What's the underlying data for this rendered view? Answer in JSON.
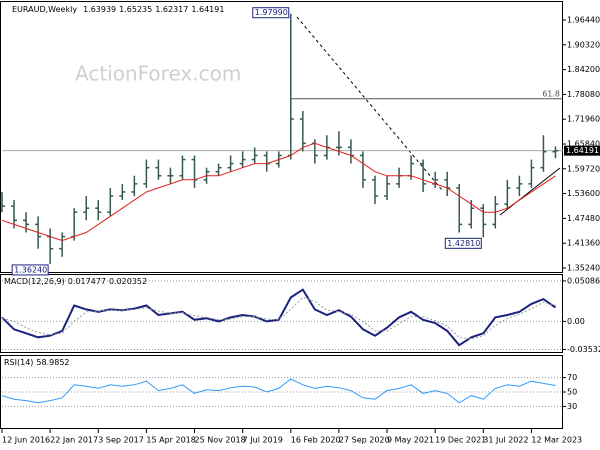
{
  "chart_data": {
    "type": "ohlc",
    "title": "EURAUD,Weekly",
    "watermark": "ActionForex.com",
    "x": [
      "12 Jun 2016",
      "7 Aug 2016",
      "2 Oct 2016",
      "27 Nov 2016",
      "22 Jan 2017",
      "19 Mar 2017",
      "14 May 2017",
      "9 Jul 2017",
      "3 Sep 2017",
      "29 Oct 2017",
      "24 Dec 2017",
      "18 Feb 2018",
      "15 Apr 2018",
      "10 Jun 2018",
      "5 Aug 2018",
      "30 Sep 2018",
      "25 Nov 2018",
      "20 Jan 2019",
      "17 Mar 2019",
      "12 May 2019",
      "7 Jul 2019",
      "1 Sep 2019",
      "27 Oct 2019",
      "22 Dec 2019",
      "16 Feb 2020",
      "12 Apr 2020",
      "7 Jun 2020",
      "2 Aug 2020",
      "27 Sep 2020",
      "22 Nov 2020",
      "17 Jan 2021",
      "14 Mar 2021",
      "9 May 2021",
      "4 Jul 2021",
      "29 Aug 2021",
      "24 Oct 2021",
      "19 Dec 2021",
      "13 Feb 2022",
      "10 Apr 2022",
      "5 Jun 2022",
      "31 Jul 2022",
      "25 Sep 2022",
      "20 Nov 2022",
      "15 Jan 2023",
      "12 Mar 2023",
      "7 May 2023",
      "2 Jul 2023"
    ],
    "xlim": [
      "12 Jun 2016",
      "6 Aug 2023"
    ],
    "xticks": [
      "12 Jun 2016",
      "22 Jan 2017",
      "3 Sep 2017",
      "15 Apr 2018",
      "25 Nov 2018",
      "7 Jul 2019",
      "16 Feb 2020",
      "27 Sep 2020",
      "9 May 2021",
      "19 Dec 2021",
      "31 Jul 2022",
      "12 Mar 2023"
    ],
    "color": "#35594f",
    "open": [
      1.52,
      1.505,
      1.47,
      1.46,
      1.43,
      1.4,
      1.43,
      1.49,
      1.5,
      1.49,
      1.53,
      1.54,
      1.56,
      1.6,
      1.58,
      1.58,
      1.62,
      1.57,
      1.59,
      1.6,
      1.61,
      1.62,
      1.63,
      1.61,
      1.63,
      1.72,
      1.66,
      1.63,
      1.65,
      1.65,
      1.63,
      1.57,
      1.53,
      1.56,
      1.58,
      1.61,
      1.56,
      1.57,
      1.55,
      1.46,
      1.5,
      1.46,
      1.51,
      1.55,
      1.56,
      1.6,
      1.63939
    ],
    "high": [
      1.54,
      1.52,
      1.49,
      1.48,
      1.45,
      1.44,
      1.5,
      1.53,
      1.52,
      1.55,
      1.56,
      1.58,
      1.62,
      1.62,
      1.6,
      1.63,
      1.63,
      1.6,
      1.61,
      1.63,
      1.64,
      1.65,
      1.64,
      1.64,
      1.9799,
      1.74,
      1.67,
      1.68,
      1.69,
      1.67,
      1.64,
      1.58,
      1.58,
      1.6,
      1.63,
      1.62,
      1.59,
      1.59,
      1.56,
      1.52,
      1.51,
      1.53,
      1.57,
      1.58,
      1.62,
      1.68,
      1.65235
    ],
    "low": [
      1.49,
      1.45,
      1.44,
      1.4,
      1.3624,
      1.38,
      1.42,
      1.47,
      1.47,
      1.48,
      1.52,
      1.53,
      1.55,
      1.57,
      1.56,
      1.57,
      1.55,
      1.56,
      1.58,
      1.59,
      1.6,
      1.61,
      1.59,
      1.6,
      1.62,
      1.64,
      1.61,
      1.62,
      1.63,
      1.61,
      1.55,
      1.51,
      1.52,
      1.55,
      1.57,
      1.54,
      1.55,
      1.53,
      1.44,
      1.45,
      1.4281,
      1.45,
      1.5,
      1.53,
      1.55,
      1.59,
      1.62317
    ],
    "close": [
      1.505,
      1.47,
      1.46,
      1.43,
      1.4,
      1.43,
      1.49,
      1.5,
      1.49,
      1.53,
      1.54,
      1.56,
      1.6,
      1.58,
      1.58,
      1.62,
      1.57,
      1.59,
      1.6,
      1.61,
      1.62,
      1.63,
      1.61,
      1.63,
      1.72,
      1.66,
      1.63,
      1.65,
      1.65,
      1.63,
      1.57,
      1.53,
      1.56,
      1.58,
      1.61,
      1.56,
      1.57,
      1.55,
      1.46,
      1.5,
      1.46,
      1.51,
      1.55,
      1.56,
      1.6,
      1.63939,
      1.64191
    ],
    "moving_average": {
      "color": "#e0201b",
      "values": [
        1.47,
        1.46,
        1.45,
        1.44,
        1.43,
        1.42,
        1.43,
        1.44,
        1.46,
        1.48,
        1.5,
        1.52,
        1.54,
        1.55,
        1.56,
        1.57,
        1.57,
        1.58,
        1.58,
        1.59,
        1.6,
        1.61,
        1.61,
        1.62,
        1.63,
        1.65,
        1.66,
        1.65,
        1.64,
        1.63,
        1.61,
        1.59,
        1.58,
        1.58,
        1.58,
        1.57,
        1.56,
        1.55,
        1.53,
        1.51,
        1.49,
        1.49,
        1.5,
        1.52,
        1.54,
        1.56,
        1.58
      ]
    },
    "ylim": [
      1.3425,
      2.0088
    ],
    "yticks": [
      {
        "value": 1.9644,
        "label": "1.96440"
      },
      {
        "value": 1.9032,
        "label": "1.90320"
      },
      {
        "value": 1.842,
        "label": "1.84200"
      },
      {
        "value": 1.7808,
        "label": "1.78080"
      },
      {
        "value": 1.7196,
        "label": "1.71960"
      },
      {
        "value": 1.6584,
        "label": "1.65840"
      },
      {
        "value": 1.5972,
        "label": "1.59720"
      },
      {
        "value": 1.536,
        "label": "1.53600"
      },
      {
        "value": 1.4748,
        "label": "1.47480"
      },
      {
        "value": 1.4136,
        "label": "1.41360"
      },
      {
        "value": 1.3524,
        "label": "1.35240"
      }
    ],
    "annotations": [
      {
        "value": 1.9799,
        "label": "1.97990"
      },
      {
        "value": 1.4281,
        "label": "1.42810"
      },
      {
        "value": 1.3624,
        "label": "1.36240"
      }
    ],
    "fibonacci": {
      "ratio": 61.8,
      "price": 1.7699
    },
    "macd": {
      "title": "MACD(12,26,9)",
      "ylim": [
        -0.0385,
        0.0583
      ],
      "yticks": [
        0.050863,
        {
          "value": 0,
          "label": "0.00"
        },
        -0.035322
      ],
      "series": [
        {
          "color": "#1a237e",
          "values": [
            0.005,
            -0.01,
            -0.015,
            -0.02,
            -0.018,
            -0.012,
            0.02,
            0.015,
            0.012,
            0.015,
            0.014,
            0.016,
            0.02,
            0.008,
            0.01,
            0.012,
            0.002,
            0.004,
            0.0,
            0.005,
            0.008,
            0.006,
            0.0,
            0.002,
            0.03,
            0.04,
            0.015,
            0.008,
            0.014,
            0.006,
            -0.01,
            -0.018,
            -0.008,
            0.005,
            0.012,
            0.002,
            -0.002,
            -0.012,
            -0.03,
            -0.02,
            -0.015,
            0.005,
            0.008,
            0.012,
            0.022,
            0.028,
            0.017477
          ]
        },
        {
          "color": "#9a9a9a",
          "values": [
            0.004,
            0.0,
            -0.008,
            -0.014,
            -0.017,
            -0.015,
            0.0,
            0.012,
            0.013,
            0.014,
            0.014,
            0.015,
            0.017,
            0.013,
            0.01,
            0.011,
            0.007,
            0.005,
            0.002,
            0.003,
            0.006,
            0.006,
            0.003,
            0.002,
            0.015,
            0.03,
            0.025,
            0.014,
            0.012,
            0.009,
            0.0,
            -0.012,
            -0.012,
            -0.003,
            0.006,
            0.006,
            0.001,
            -0.006,
            -0.02,
            -0.022,
            -0.018,
            -0.005,
            0.004,
            0.009,
            0.016,
            0.024,
            0.020352
          ]
        }
      ]
    },
    "rsi": {
      "title": "RSI(14)",
      "color": "#3399ff",
      "ylim": [
        0,
        100
      ],
      "yticks": [
        70,
        50,
        30
      ],
      "values": [
        45,
        40,
        38,
        35,
        38,
        42,
        60,
        58,
        55,
        60,
        58,
        60,
        65,
        52,
        55,
        60,
        48,
        53,
        52,
        56,
        58,
        57,
        50,
        55,
        68,
        60,
        55,
        58,
        56,
        52,
        42,
        40,
        52,
        55,
        60,
        48,
        52,
        48,
        35,
        45,
        40,
        55,
        60,
        58,
        65,
        62,
        58.9852
      ]
    }
  }
}
